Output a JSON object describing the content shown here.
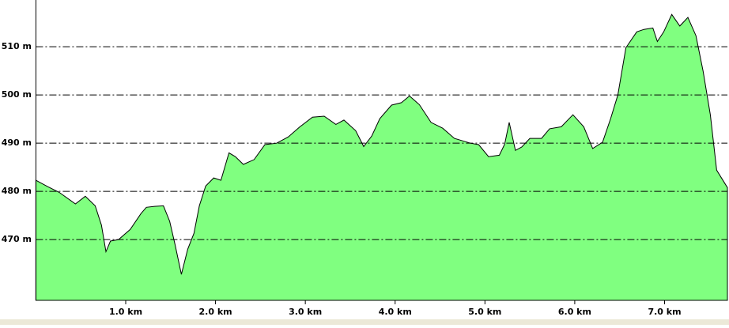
{
  "chart_data": {
    "type": "area",
    "color": "#80ff80",
    "line_color": "#000000",
    "grid": true,
    "x": [
      0,
      0.13,
      0.26,
      0.44,
      0.55,
      0.66,
      0.73,
      0.78,
      0.83,
      0.92,
      1.05,
      1.17,
      1.23,
      1.32,
      1.42,
      1.49,
      1.55,
      1.62,
      1.69,
      1.76,
      1.82,
      1.89,
      1.98,
      2.06,
      2.15,
      2.22,
      2.31,
      2.43,
      2.55,
      2.68,
      2.81,
      2.94,
      3.08,
      3.21,
      3.34,
      3.43,
      3.56,
      3.65,
      3.74,
      3.83,
      3.96,
      4.07,
      4.16,
      4.27,
      4.4,
      4.53,
      4.66,
      4.84,
      4.93,
      5.04,
      5.16,
      5.22,
      5.27,
      5.34,
      5.41,
      5.5,
      5.63,
      5.72,
      5.85,
      5.98,
      6.1,
      6.2,
      6.31,
      6.4,
      6.48,
      6.57,
      6.69,
      6.77,
      6.87,
      6.92,
      6.99,
      7.08,
      7.17,
      7.26,
      7.35,
      7.43,
      7.51,
      7.58,
      7.7
    ],
    "values": [
      482.3,
      481.0,
      479.8,
      477.4,
      479.0,
      477.0,
      473.0,
      467.5,
      469.7,
      470.0,
      472.1,
      475.4,
      476.7,
      476.9,
      477.0,
      473.8,
      468.9,
      462.8,
      468.0,
      471.3,
      477.0,
      481.1,
      482.8,
      482.3,
      488.0,
      487.2,
      485.6,
      486.6,
      489.7,
      490.0,
      491.3,
      493.4,
      495.4,
      495.6,
      493.9,
      494.8,
      492.6,
      489.3,
      491.5,
      495.1,
      497.9,
      498.4,
      499.8,
      498.0,
      494.3,
      493.1,
      491.0,
      490.0,
      489.7,
      487.2,
      487.5,
      489.8,
      494.3,
      488.5,
      489.2,
      491.0,
      491.0,
      493.0,
      493.4,
      495.9,
      493.4,
      488.9,
      490.2,
      495.1,
      500.0,
      509.8,
      513.1,
      513.6,
      513.9,
      511.1,
      513.1,
      516.7,
      514.3,
      516.1,
      512.3,
      504.9,
      495.9,
      484.4,
      480.8
    ],
    "xlim": [
      0,
      7.7
    ],
    "ylim": [
      457.4,
      519.7
    ],
    "xticks": [
      {
        "value": 1,
        "label": "1.0 km"
      },
      {
        "value": 2,
        "label": "2.0 km"
      },
      {
        "value": 3,
        "label": "3.0 km"
      },
      {
        "value": 4,
        "label": "4.0 km"
      },
      {
        "value": 5,
        "label": "5.0 km"
      },
      {
        "value": 6,
        "label": "6.0 km"
      },
      {
        "value": 7,
        "label": "7.0 km"
      }
    ],
    "yticks": [
      {
        "value": 470,
        "label": "470 m"
      },
      {
        "value": 480,
        "label": "480 m"
      },
      {
        "value": 490,
        "label": "490 m"
      },
      {
        "value": 500,
        "label": "500 m"
      },
      {
        "value": 510,
        "label": "510 m"
      }
    ]
  }
}
